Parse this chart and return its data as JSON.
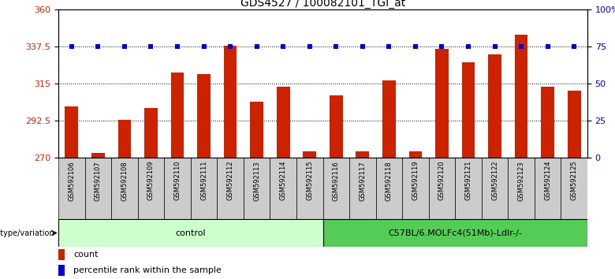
{
  "title": "GDS4527 / 100082101_TGI_at",
  "samples": [
    "GSM592106",
    "GSM592107",
    "GSM592108",
    "GSM592109",
    "GSM592110",
    "GSM592111",
    "GSM592112",
    "GSM592113",
    "GSM592114",
    "GSM592115",
    "GSM592116",
    "GSM592117",
    "GSM592118",
    "GSM592119",
    "GSM592120",
    "GSM592121",
    "GSM592122",
    "GSM592123",
    "GSM592124",
    "GSM592125"
  ],
  "counts": [
    301,
    273,
    293,
    300,
    322,
    321,
    338,
    304,
    313,
    274,
    308,
    274,
    317,
    274,
    336,
    328,
    333,
    345,
    313,
    311
  ],
  "percentiles": [
    75,
    75,
    75,
    75,
    75,
    75,
    75,
    75,
    75,
    75,
    75,
    75,
    75,
    75,
    75,
    75,
    75,
    75,
    75,
    75
  ],
  "bar_color": "#cc2200",
  "dot_color": "#0000cc",
  "ylim_left": [
    270,
    360
  ],
  "ylim_right": [
    0,
    100
  ],
  "yticks_left": [
    270,
    292.5,
    315,
    337.5,
    360
  ],
  "ytick_labels_left": [
    "270",
    "292.5",
    "315",
    "337.5",
    "360"
  ],
  "yticks_right": [
    0,
    25,
    50,
    75,
    100
  ],
  "ytick_labels_right": [
    "0",
    "25",
    "50",
    "75",
    "100%"
  ],
  "hlines": [
    292.5,
    315,
    337.5
  ],
  "control_count": 10,
  "group2_count": 10,
  "group1_label": "control",
  "group2_label": "C57BL/6.MOLFc4(51Mb)-Ldlr-/-",
  "genotype_label": "genotype/variation",
  "legend_count_label": "count",
  "legend_pct_label": "percentile rank within the sample",
  "bg_color": "#ffffff",
  "plot_bg_color": "#ffffff",
  "tick_label_color_left": "#cc2200",
  "tick_label_color_right": "#0000cc",
  "title_fontsize": 10,
  "group1_bg": "#ccffcc",
  "group2_bg": "#55cc55",
  "xlabel_bg": "#cccccc",
  "bar_width": 0.5
}
